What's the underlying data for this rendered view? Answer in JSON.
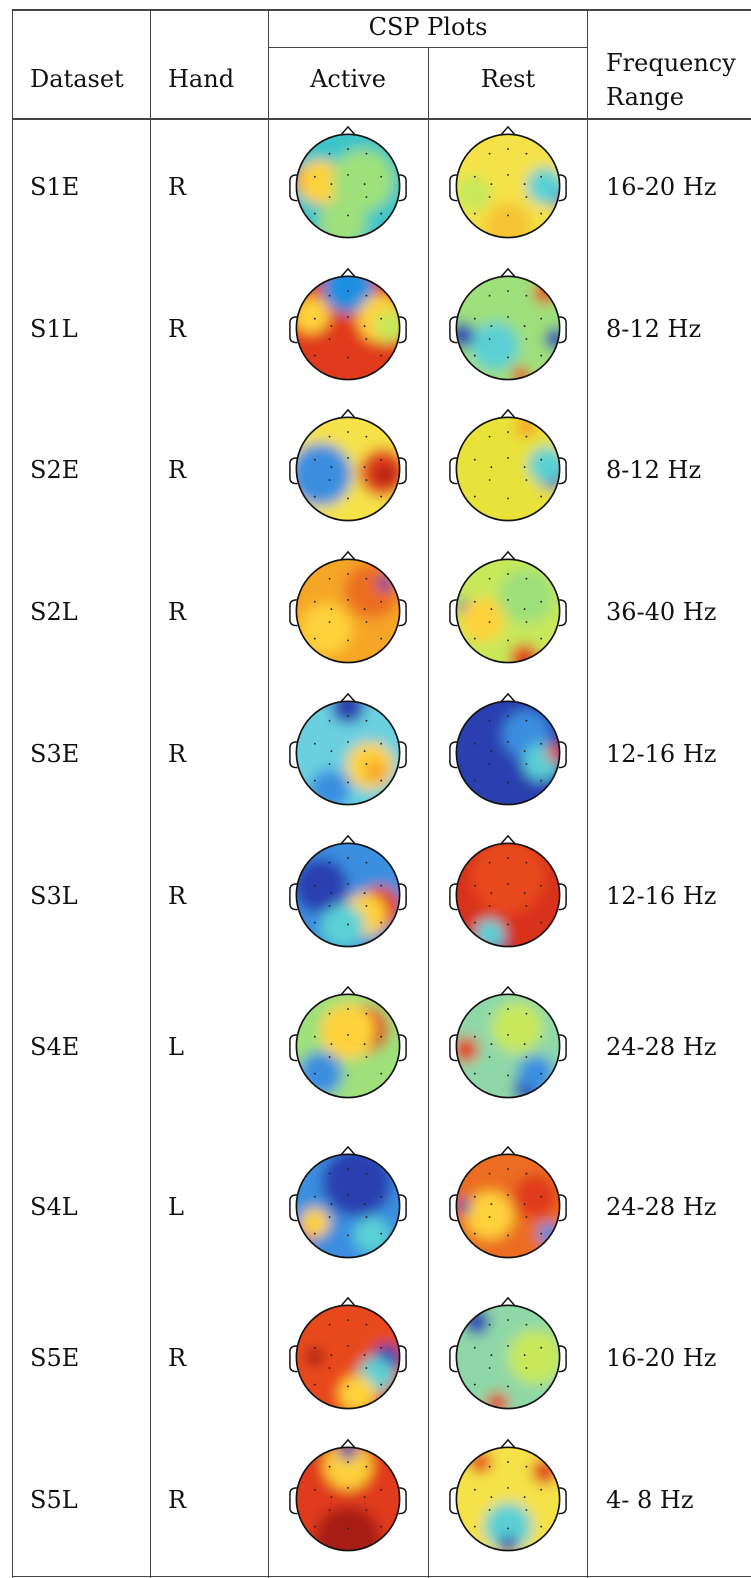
{
  "table": {
    "headers": {
      "dataset": "Dataset",
      "hand": "Hand",
      "csp_plots": "CSP Plots",
      "active": "Active",
      "rest": "Rest",
      "frequency_line1": "Frequency",
      "frequency_line2": "Range"
    },
    "rows": [
      {
        "dataset": "S1E",
        "hand": "R",
        "frequency": "16-20 Hz",
        "active": [
          [
            "#3cc4c8",
            0,
            0,
            80
          ],
          [
            "#e23a1a",
            -44,
            -6,
            16
          ],
          [
            "#ffd23a",
            -30,
            -4,
            24
          ],
          [
            "#9ee07a",
            16,
            -6,
            34
          ],
          [
            "#9ee07a",
            -6,
            40,
            26
          ]
        ],
        "rest": [
          [
            "#f5e24a",
            0,
            0,
            80
          ],
          [
            "#2c3fb0",
            52,
            8,
            14
          ],
          [
            "#5ad0d4",
            40,
            0,
            20
          ],
          [
            "#f5c430",
            0,
            44,
            26
          ],
          [
            "#c8e85a",
            -38,
            8,
            20
          ]
        ]
      },
      {
        "dataset": "S1L",
        "hand": "R",
        "frequency": "8-12 Hz",
        "active": [
          [
            "#e03a1c",
            0,
            0,
            80
          ],
          [
            "#1f8fe0",
            0,
            -44,
            28
          ],
          [
            "#ffd23a",
            -40,
            -14,
            20
          ],
          [
            "#ffd23a",
            36,
            -10,
            26
          ],
          [
            "#c8e85a",
            46,
            -2,
            18
          ]
        ],
        "rest": [
          [
            "#9ee07a",
            0,
            0,
            80
          ],
          [
            "#2c3fb0",
            -50,
            8,
            14
          ],
          [
            "#2c3fb0",
            52,
            12,
            12
          ],
          [
            "#e23a1a",
            40,
            -38,
            12
          ],
          [
            "#e23a1a",
            14,
            52,
            10
          ],
          [
            "#5ad0d4",
            -14,
            20,
            26
          ]
        ]
      },
      {
        "dataset": "S2E",
        "hand": "R",
        "frequency": "8-12 Hz",
        "active": [
          [
            "#f5e24a",
            0,
            0,
            80
          ],
          [
            "#2c3fb0",
            -38,
            6,
            26
          ],
          [
            "#3a8ee0",
            -30,
            6,
            34
          ],
          [
            "#e03a1c",
            38,
            4,
            26
          ],
          [
            "#a81e12",
            40,
            6,
            10
          ]
        ],
        "rest": [
          [
            "#e8e23a",
            0,
            0,
            80
          ],
          [
            "#2c3fb0",
            48,
            4,
            18
          ],
          [
            "#5ad0d4",
            42,
            -4,
            20
          ],
          [
            "#f5a628",
            20,
            -46,
            12
          ]
        ]
      },
      {
        "dataset": "S2L",
        "hand": "R",
        "frequency": "36-40 Hz",
        "active": [
          [
            "#f5a628",
            0,
            0,
            80
          ],
          [
            "#ec6d20",
            26,
            -22,
            30
          ],
          [
            "#2c3fb0",
            40,
            -30,
            8
          ],
          [
            "#ffd23a",
            -24,
            20,
            28
          ]
        ],
        "rest": [
          [
            "#c8e85a",
            0,
            0,
            80
          ],
          [
            "#2c3fb0",
            -48,
            -4,
            8
          ],
          [
            "#ffd23a",
            -28,
            10,
            24
          ],
          [
            "#e23a1a",
            18,
            52,
            16
          ],
          [
            "#9ee07a",
            20,
            -16,
            30
          ]
        ]
      },
      {
        "dataset": "S3E",
        "hand": "R",
        "frequency": "12-16 Hz",
        "active": [
          [
            "#6ad0e0",
            0,
            0,
            80
          ],
          [
            "#2c3fb0",
            0,
            -50,
            18
          ],
          [
            "#ffd23a",
            24,
            14,
            26
          ],
          [
            "#f5a628",
            30,
            20,
            12
          ],
          [
            "#3a8ee0",
            -20,
            40,
            22
          ]
        ],
        "rest": [
          [
            "#2c3fb0",
            0,
            0,
            80
          ],
          [
            "#3a8ee0",
            20,
            -20,
            26
          ],
          [
            "#5ad0d4",
            36,
            10,
            20
          ],
          [
            "#e23a1a",
            52,
            0,
            10
          ]
        ]
      },
      {
        "dataset": "S3L",
        "hand": "R",
        "frequency": "12-16 Hz",
        "active": [
          [
            "#3a8ee0",
            0,
            0,
            80
          ],
          [
            "#2c3fb0",
            -30,
            -10,
            30
          ],
          [
            "#e03a1c",
            34,
            14,
            24
          ],
          [
            "#ffd23a",
            18,
            22,
            24
          ],
          [
            "#5ad0d4",
            -6,
            34,
            24
          ]
        ],
        "rest": [
          [
            "#d8321c",
            0,
            0,
            80
          ],
          [
            "#e84a1c",
            0,
            -20,
            40
          ],
          [
            "#2c3fb0",
            -14,
            50,
            12
          ],
          [
            "#5ad0d4",
            -20,
            42,
            16
          ]
        ]
      },
      {
        "dataset": "S4E",
        "hand": "L",
        "frequency": "24-28 Hz",
        "active": [
          [
            "#9ee07a",
            0,
            0,
            80
          ],
          [
            "#e03a1c",
            18,
            -18,
            26
          ],
          [
            "#a81e12",
            24,
            -10,
            12
          ],
          [
            "#3a8ee0",
            -30,
            30,
            24
          ],
          [
            "#ffd23a",
            0,
            -16,
            30
          ]
        ],
        "rest": [
          [
            "#8ed8a8",
            0,
            0,
            80
          ],
          [
            "#e23a1a",
            -46,
            4,
            14
          ],
          [
            "#2c3fb0",
            22,
            46,
            16
          ],
          [
            "#c8e85a",
            10,
            -20,
            28
          ],
          [
            "#3a8ee0",
            30,
            30,
            20
          ]
        ]
      },
      {
        "dataset": "S4L",
        "hand": "L",
        "frequency": "24-28 Hz",
        "active": [
          [
            "#3a8ee0",
            0,
            0,
            80
          ],
          [
            "#2c3fb0",
            10,
            -26,
            38
          ],
          [
            "#e23a1a",
            -42,
            26,
            12
          ],
          [
            "#5ad0d4",
            26,
            32,
            20
          ],
          [
            "#ffd23a",
            -36,
            18,
            16
          ]
        ],
        "rest": [
          [
            "#ec6d20",
            0,
            0,
            80
          ],
          [
            "#ffd23a",
            -20,
            10,
            26
          ],
          [
            "#e03a1c",
            30,
            -10,
            24
          ],
          [
            "#3a8ee0",
            44,
            30,
            12
          ],
          [
            "#2c3fb0",
            -48,
            0,
            8
          ]
        ]
      },
      {
        "dataset": "S5E",
        "hand": "R",
        "frequency": "16-20 Hz",
        "active": [
          [
            "#e84a1c",
            0,
            0,
            80
          ],
          [
            "#2c3fb0",
            42,
            2,
            16
          ],
          [
            "#5ad0d4",
            30,
            20,
            20
          ],
          [
            "#ffd23a",
            10,
            40,
            20
          ],
          [
            "#a81e12",
            -36,
            0,
            10
          ]
        ],
        "rest": [
          [
            "#8ed8a8",
            0,
            0,
            80
          ],
          [
            "#2c3fb0",
            -34,
            -38,
            14
          ],
          [
            "#e23a1a",
            -12,
            50,
            12
          ],
          [
            "#c8e85a",
            30,
            0,
            30
          ]
        ]
      },
      {
        "dataset": "S5L",
        "hand": "R",
        "frequency": "4- 8 Hz",
        "active": [
          [
            "#e03a1c",
            0,
            0,
            80
          ],
          [
            "#a81e12",
            0,
            44,
            36
          ],
          [
            "#ffd23a",
            0,
            -36,
            26
          ],
          [
            "#2c3fb0",
            0,
            -52,
            10
          ]
        ],
        "rest": [
          [
            "#f5e24a",
            0,
            0,
            80
          ],
          [
            "#e23a1a",
            -30,
            -40,
            12
          ],
          [
            "#e03a1c",
            40,
            -30,
            14
          ],
          [
            "#5ad0d4",
            0,
            30,
            26
          ],
          [
            "#2c3fb0",
            0,
            50,
            10
          ]
        ]
      }
    ]
  }
}
